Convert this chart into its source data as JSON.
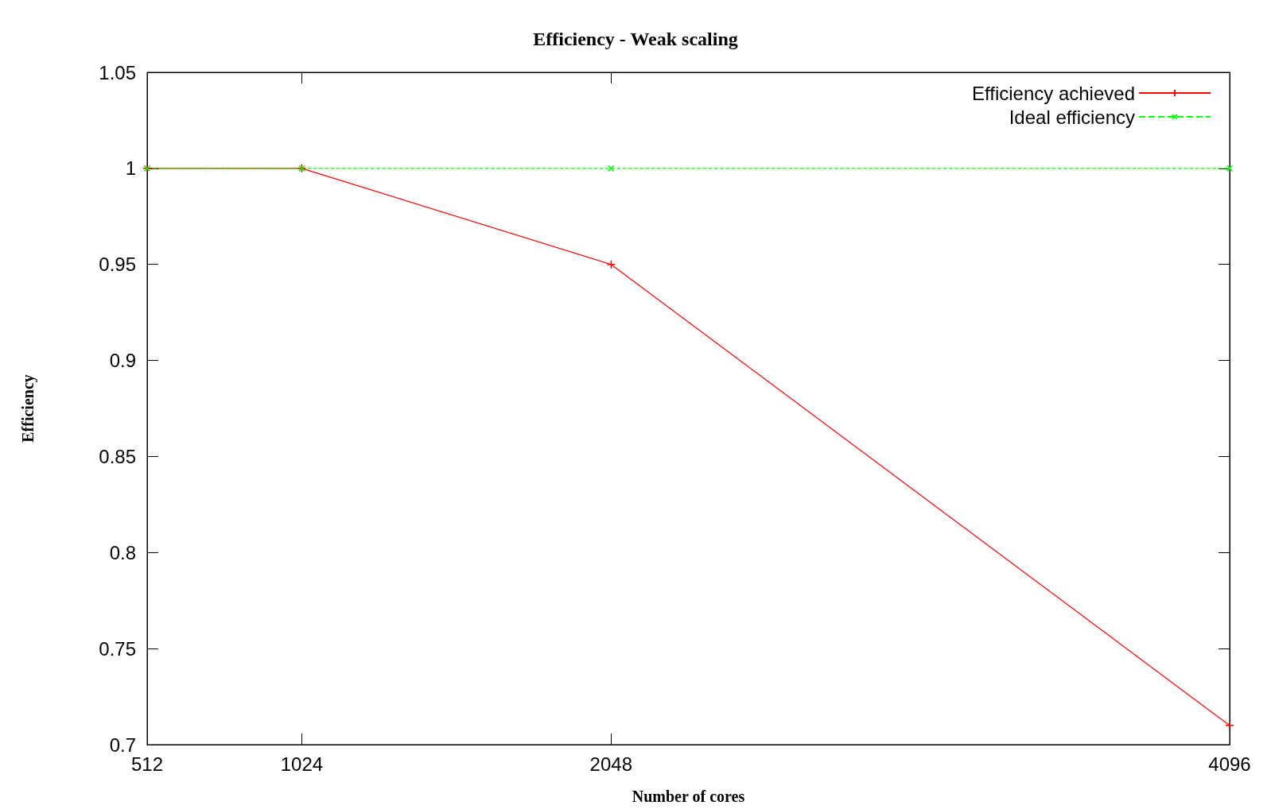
{
  "chart_data": {
    "type": "line",
    "title": "Efficiency - Weak scaling",
    "xlabel": "Number of cores",
    "ylabel": "Efficiency",
    "x": [
      512,
      1024,
      2048,
      4096
    ],
    "series": [
      {
        "name": "Efficiency achieved",
        "color": "#ff0000",
        "values": [
          1,
          1,
          0.95,
          0.71
        ],
        "marker": "cross",
        "line_style": "solid"
      },
      {
        "name": "Ideal efficiency",
        "color": "#00ff00",
        "values": [
          1,
          1,
          1,
          1
        ],
        "marker": "cross",
        "line_style": "dashed"
      }
    ],
    "xlim": [
      512,
      4096
    ],
    "xticks": [
      512,
      1024,
      2048,
      4096
    ],
    "ylim": [
      0.7,
      1.05
    ],
    "yticks": [
      0.7,
      0.75,
      0.8,
      0.85,
      0.9,
      0.95,
      1,
      1.05
    ],
    "legend": "top right",
    "grid": false
  }
}
